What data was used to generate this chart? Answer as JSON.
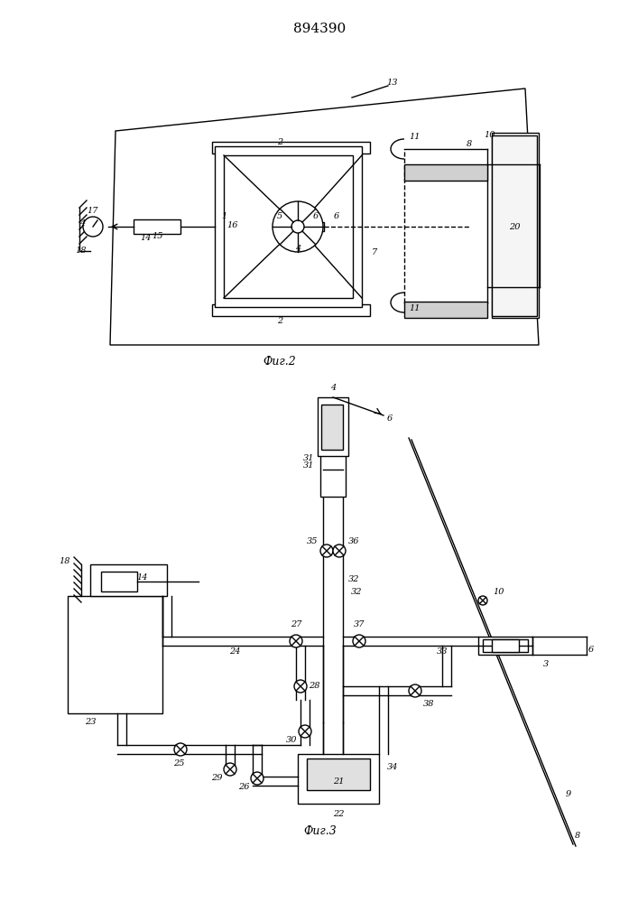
{
  "title": "894390",
  "fig2_caption": "Фиг.2",
  "fig3_caption": "Фиг.3",
  "bg_color": "#ffffff",
  "line_color": "#000000",
  "line_width": 1.0,
  "fig_width": 7.07,
  "fig_height": 10.0
}
